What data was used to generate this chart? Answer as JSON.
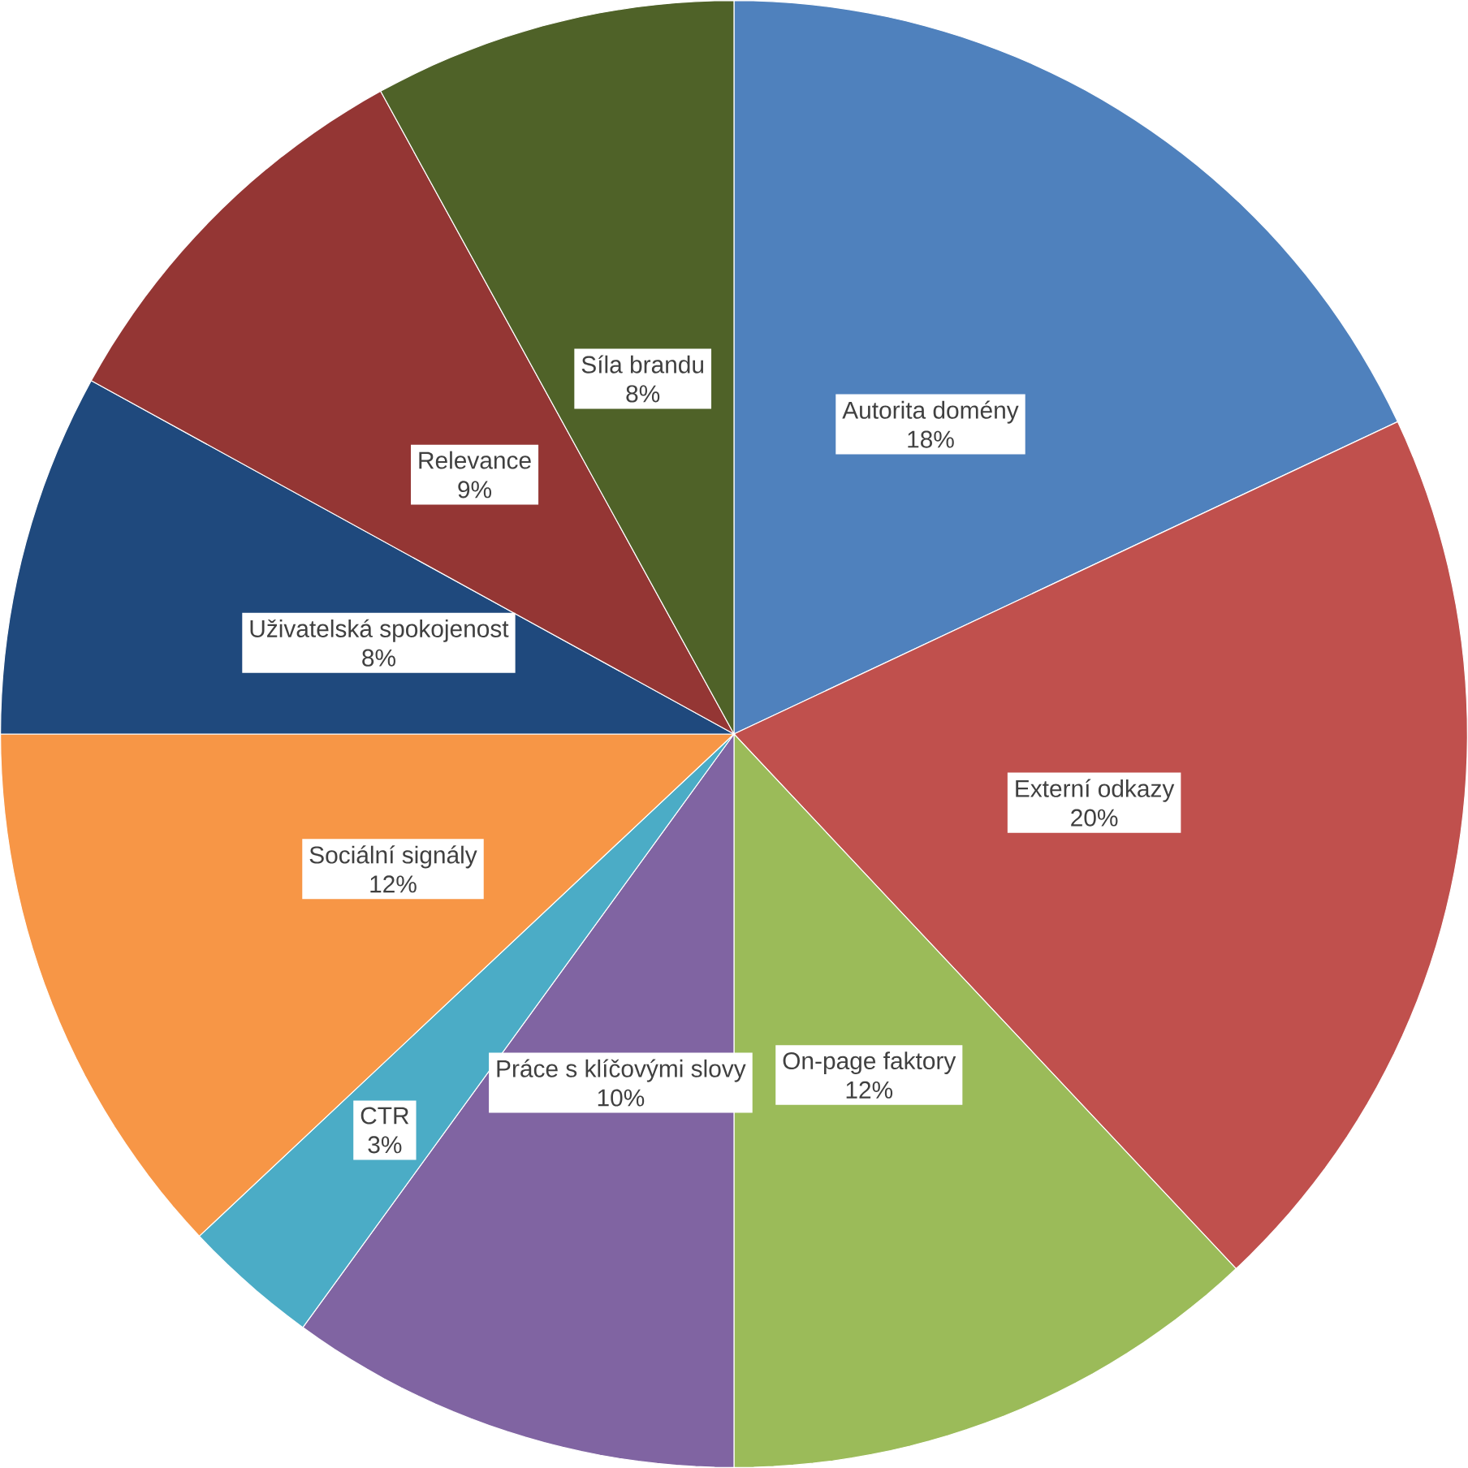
{
  "chart_data": {
    "type": "pie",
    "value_labels": [
      "18%",
      "20%",
      "12%",
      "10%",
      "3%",
      "12%",
      "8%",
      "9%",
      "8%"
    ],
    "categories": [
      "Autorita domény",
      "Externí odkazy",
      "On-page faktory",
      "Práce s klíčovými slovy",
      "CTR",
      "Sociální signály",
      "Uživatelská spokojenost",
      "Relevance",
      "Síla brandu"
    ],
    "values": [
      18,
      20,
      12,
      10,
      3,
      12,
      8,
      9,
      8
    ],
    "colors": [
      "#4f81bd",
      "#c0504d",
      "#9bbb59",
      "#8064a2",
      "#4bacc6",
      "#f79646",
      "#1f497d",
      "#943634",
      "#4f6228"
    ]
  }
}
